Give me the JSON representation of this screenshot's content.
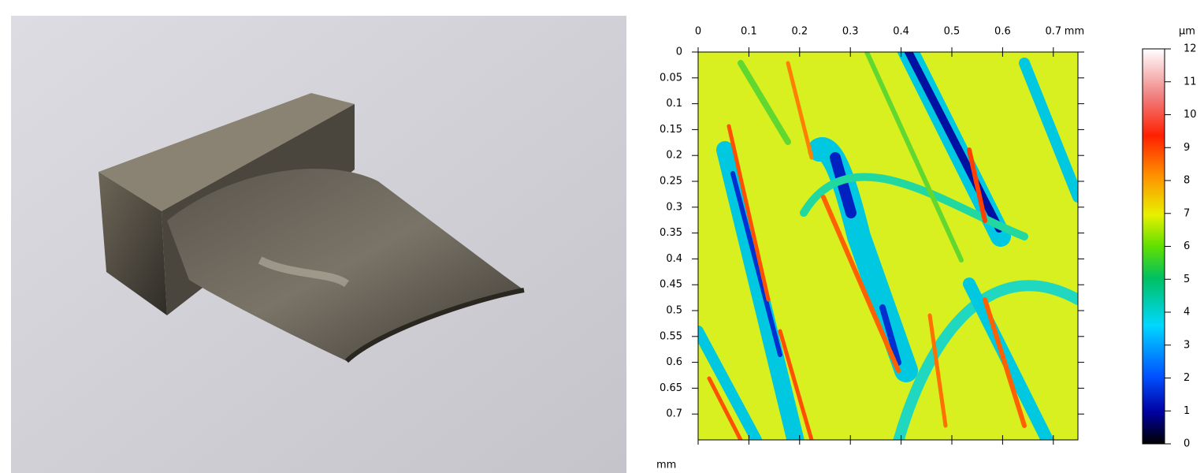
{
  "surface_map": {
    "x_axis": {
      "ticks": [
        0,
        0.1,
        0.2,
        0.3,
        0.4,
        0.5,
        0.6,
        0.7
      ],
      "unit": "mm"
    },
    "y_axis": {
      "ticks": [
        0,
        0.05,
        0.1,
        0.15,
        0.2,
        0.25,
        0.3,
        0.35,
        0.4,
        0.45,
        0.5,
        0.55,
        0.6,
        0.65,
        0.7
      ],
      "unit": "mm"
    },
    "colorbar": {
      "unit": "µm",
      "ticks": [
        0,
        1,
        2,
        3,
        4,
        5,
        6,
        7,
        8,
        9,
        10,
        11,
        12
      ]
    }
  }
}
